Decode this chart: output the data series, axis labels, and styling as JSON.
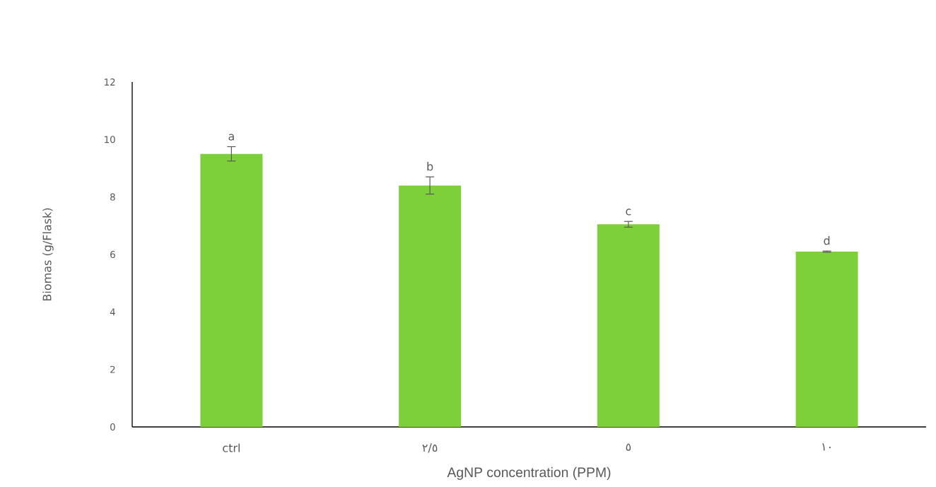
{
  "chart_data": {
    "type": "bar",
    "xlabel": "AgNP concentration (PPM)",
    "ylabel": "Biomas (g/Flask)",
    "categories": [
      "ctrl",
      "٢/٥",
      "٥",
      "١٠"
    ],
    "values": [
      9.5,
      8.4,
      7.05,
      6.1
    ],
    "errors": [
      0.25,
      0.3,
      0.1,
      0.02
    ],
    "color": "#7ed03b",
    "ylim": [
      0,
      12
    ],
    "yticks": [
      0,
      2,
      4,
      6,
      8,
      10,
      12
    ],
    "annotations": [
      "a",
      "b",
      "c",
      "d"
    ]
  }
}
